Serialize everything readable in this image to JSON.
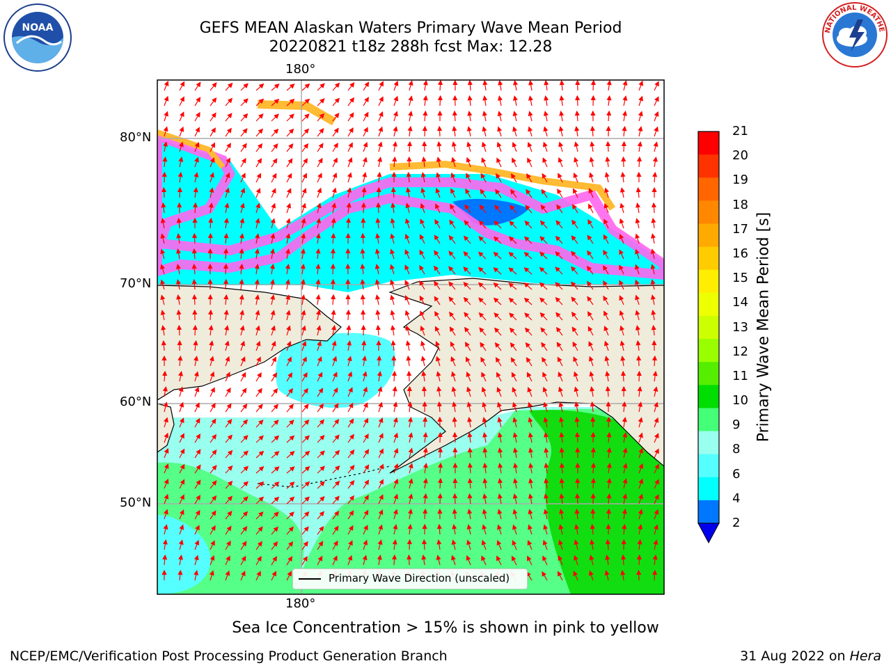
{
  "title_line1": "GEFS MEAN Alaskan Waters Primary Wave Mean Period",
  "title_line2": "20220821 t18z 288h fcst   Max: 12.28",
  "logos": {
    "left": "noaa-logo",
    "right": "national-weather-service-logo",
    "noaa_text": "NOAA",
    "nws_text": "NATIONAL WEATHER SERVICE"
  },
  "map": {
    "top_lon_label": "180°",
    "bottom_lon_label": "180°",
    "lat_labels": [
      "80°N",
      "70°N",
      "60°N",
      "50°N"
    ],
    "legend_label": "Primary Wave Direction (unscaled)"
  },
  "colorbar": {
    "label": "Primary Wave Mean Period [s]",
    "ticks": [
      "21",
      "20",
      "19",
      "18",
      "17",
      "16",
      "15",
      "14",
      "13",
      "12",
      "11",
      "10",
      "9",
      "8",
      "6",
      "4",
      "2"
    ],
    "colors": [
      "#ff0000",
      "#ff3300",
      "#ff6600",
      "#ff8800",
      "#ffaa00",
      "#ffcc00",
      "#ffee00",
      "#eeff00",
      "#ccff00",
      "#99ff00",
      "#55ee00",
      "#00dd00",
      "#44ff77",
      "#99ffee",
      "#55ffff",
      "#00ffff",
      "#0077ff"
    ],
    "under_color": "#0000ee"
  },
  "footnote": "Sea Ice Concentration > 15% is shown in pink to yellow",
  "credit": "NCEP/EMC/Verification Post Processing Product Generation Branch",
  "date_text": "31 Aug 2022 on ",
  "date_machine": "Hera"
}
